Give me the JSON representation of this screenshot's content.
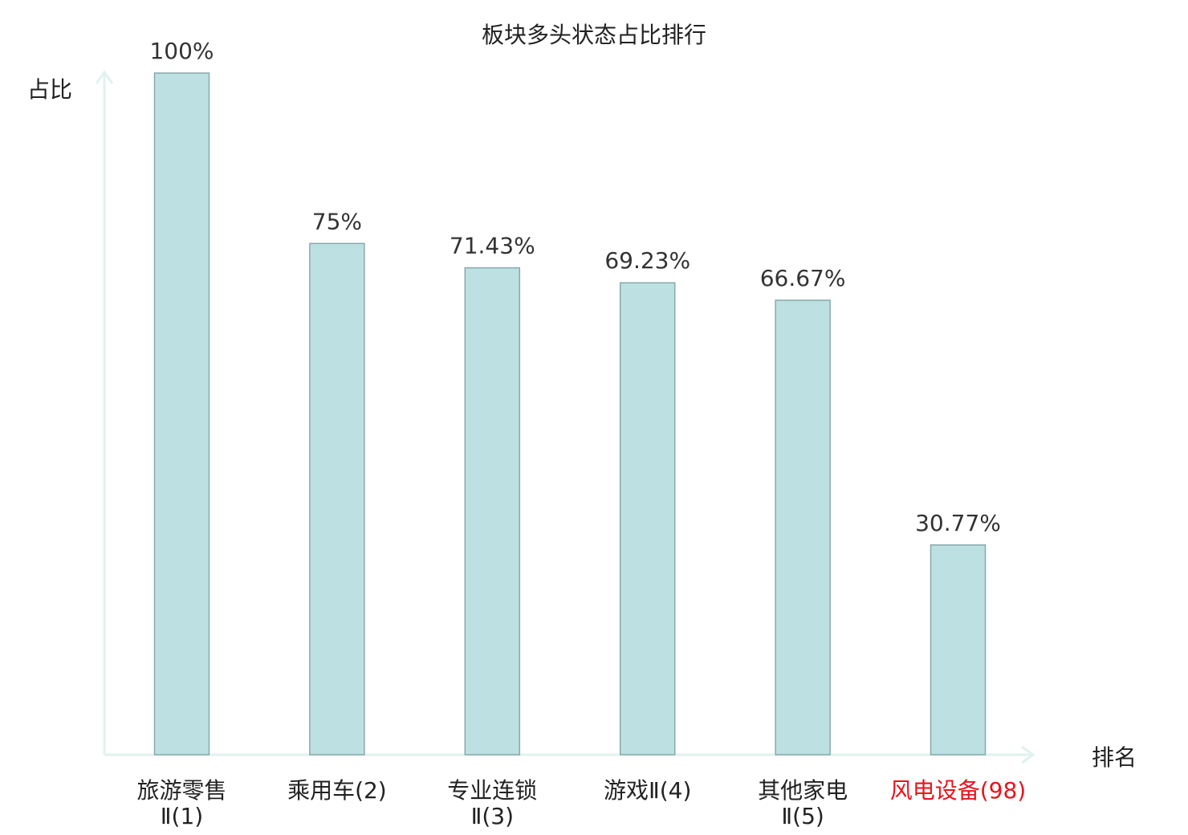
{
  "chart_data": {
    "type": "bar",
    "title": "板块多头状态占比排行",
    "ylabel": "占比",
    "xlabel": "排名",
    "ylim": [
      0,
      100
    ],
    "grid": false,
    "categories": [
      {
        "line1": "旅游零售",
        "line2": "Ⅱ(1)"
      },
      {
        "line1": "乘用车(2)",
        "line2": ""
      },
      {
        "line1": "专业连锁",
        "line2": "Ⅱ(3)"
      },
      {
        "line1": "游戏Ⅱ(4)",
        "line2": ""
      },
      {
        "line1": "其他家电",
        "line2": "Ⅱ(5)"
      },
      {
        "line1": "风电设备(98)",
        "line2": ""
      }
    ],
    "values": [
      100,
      75,
      71.43,
      69.23,
      66.67,
      30.77
    ],
    "value_labels": [
      "100%",
      "75%",
      "71.43%",
      "69.23%",
      "66.67%",
      "30.77%"
    ],
    "highlight_index": 5,
    "colors": {
      "bar_fill": "#bde0e3",
      "bar_stroke": "#88a9ab",
      "axis": "#e0f2ef",
      "text": "#222222",
      "value_text": "#333333",
      "highlight": "#e8141c"
    }
  }
}
